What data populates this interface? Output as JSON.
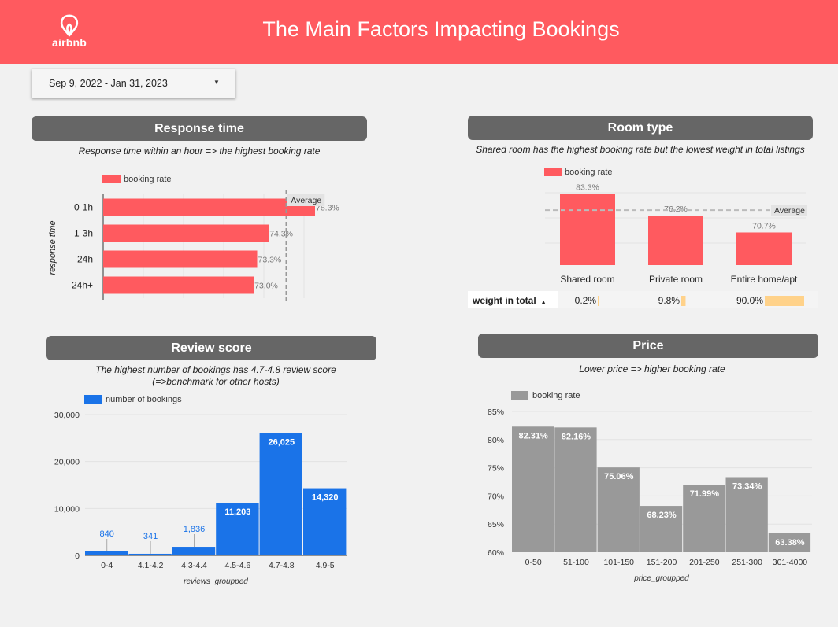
{
  "header": {
    "title": "The Main Factors Impacting Bookings",
    "logo_text": "airbnb",
    "logo_icon": "airbnb-logo-icon"
  },
  "date_range": {
    "value": "Sep 9, 2022 - Jan 31, 2023",
    "icon": "dropdown-caret-icon"
  },
  "colors": {
    "brand": "#ff5a5f",
    "bar_red": "#ff5a5f",
    "bar_blue": "#1a73e8",
    "bar_gray": "#999999",
    "weight_bar": "#ffd28a",
    "panel_header": "#666666"
  },
  "response_time": {
    "title": "Response time",
    "subtitle": "Response time within an hour => the highest booking rate",
    "chart_data": {
      "type": "bar",
      "orientation": "horizontal",
      "categories": [
        "0-1h",
        "1-3h",
        "24h",
        "24h+"
      ],
      "series": [
        {
          "name": "booking rate",
          "values": [
            78.3,
            74.3,
            73.3,
            73.0
          ]
        }
      ],
      "value_labels": [
        "78.3%",
        "74.3%",
        "73.3%",
        "73.0%"
      ],
      "ylabel": "response time",
      "reference_line": {
        "label": "Average",
        "value": 75.8
      },
      "xlim": [
        60,
        80
      ],
      "legend": "top-left"
    }
  },
  "room_type": {
    "title": "Room type",
    "subtitle": "Shared room has the highest booking rate but the lowest weight in total listings",
    "chart_data": {
      "type": "bar",
      "categories": [
        "Shared room",
        "Private room",
        "Entire home/apt"
      ],
      "series": [
        {
          "name": "booking rate",
          "values": [
            83.3,
            76.2,
            70.7
          ]
        }
      ],
      "value_labels": [
        "83.3%",
        "76.2%",
        "70.7%"
      ],
      "reference_line": {
        "label": "Average",
        "value": 78
      },
      "ylim": [
        60,
        85
      ],
      "legend": "top-left"
    },
    "weight_row": {
      "header": "weight in total",
      "sort_icon": "sort-ascending-icon",
      "labels": [
        "0.2%",
        "9.8%",
        "90.0%"
      ],
      "values": [
        0.2,
        9.8,
        90.0
      ]
    }
  },
  "review_score": {
    "title": "Review score",
    "subtitle_line1": "The highest number of bookings has 4.7-4.8 review score",
    "subtitle_line2": "(=>benchmark for other hosts)",
    "chart_data": {
      "type": "bar",
      "categories": [
        "0-4",
        "4.1-4.2",
        "4.3-4.4",
        "4.5-4.6",
        "4.7-4.8",
        "4.9-5"
      ],
      "series": [
        {
          "name": "number of bookings",
          "values": [
            840,
            341,
            1836,
            11203,
            26025,
            14320
          ]
        }
      ],
      "value_labels": [
        "840",
        "341",
        "1,836",
        "11,203",
        "26,025",
        "14,320"
      ],
      "yticks": [
        "0",
        "10,000",
        "20,000",
        "30,000"
      ],
      "ylim": [
        0,
        30000
      ],
      "xlabel": "reviews_groupped",
      "legend": "top-left"
    }
  },
  "price": {
    "title": "Price",
    "subtitle": "Lower price => higher booking rate",
    "chart_data": {
      "type": "bar",
      "categories": [
        "0-50",
        "51-100",
        "101-150",
        "151-200",
        "201-250",
        "251-300",
        "301-4000"
      ],
      "series": [
        {
          "name": "booking rate",
          "values": [
            82.31,
            82.16,
            75.06,
            68.23,
            71.99,
            73.34,
            63.38
          ]
        }
      ],
      "value_labels": [
        "82.31%",
        "82.16%",
        "75.06%",
        "68.23%",
        "71.99%",
        "73.34%",
        "63.38%"
      ],
      "yticks": [
        "60%",
        "65%",
        "70%",
        "75%",
        "80%",
        "85%"
      ],
      "ylim": [
        60,
        85
      ],
      "xlabel": "price_groupped",
      "legend": "top-left"
    }
  }
}
